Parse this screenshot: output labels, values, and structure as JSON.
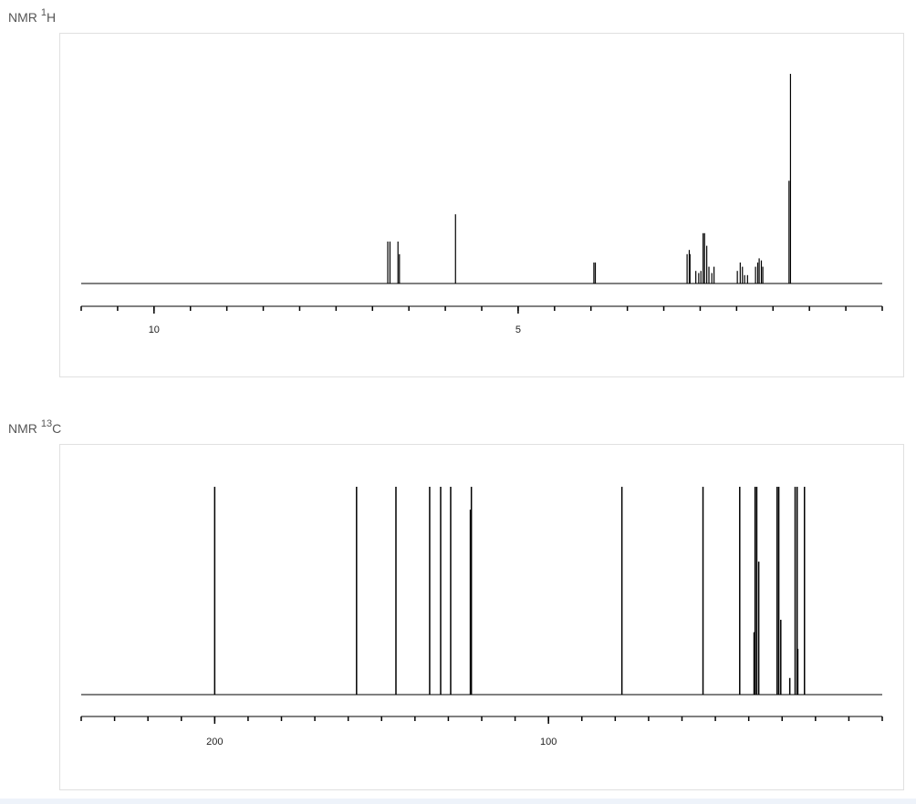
{
  "chart_data": [
    {
      "type": "spectrum",
      "title": {
        "text": "NMR",
        "isotope_mass": "1",
        "element": "H"
      },
      "x": [
        6.79,
        6.76,
        6.65,
        6.63,
        5.86,
        3.96,
        3.94,
        2.68,
        2.65,
        2.64,
        2.56,
        2.52,
        2.49,
        2.46,
        2.44,
        2.41,
        2.38,
        2.34,
        2.31,
        1.99,
        1.95,
        1.92,
        1.89,
        1.85,
        1.74,
        1.71,
        1.69,
        1.66,
        1.64,
        1.28,
        1.26
      ],
      "values": [
        20,
        20,
        20,
        14,
        33,
        10,
        10,
        14,
        16,
        14,
        6,
        5,
        6,
        24,
        24,
        18,
        8,
        5,
        8,
        6,
        10,
        8,
        4,
        4,
        8,
        10,
        12,
        11,
        8,
        49,
        100
      ],
      "color": "#000000",
      "xlim": [
        11,
        0
      ],
      "ylim": [
        0,
        100
      ],
      "xticks": [
        10,
        5
      ],
      "xminor_ticks": [
        11,
        10.5,
        10,
        9.5,
        9,
        8.5,
        8,
        7.5,
        7,
        6.5,
        6,
        5.5,
        5,
        4.5,
        4,
        3.5,
        3,
        2.5,
        2,
        1.5,
        1,
        0.5,
        0
      ]
    },
    {
      "type": "spectrum",
      "title": {
        "text": "NMR",
        "isotope_mass": "13",
        "element": "C"
      },
      "x": [
        200.0,
        157.5,
        145.7,
        135.6,
        132.3,
        129.3,
        123.4,
        123.1,
        78.0,
        53.7,
        42.7,
        38.4,
        38.1,
        37.6,
        37.0,
        31.5,
        31.0,
        30.4,
        27.7,
        26.1,
        25.5,
        25.3,
        23.3
      ],
      "values": [
        100,
        100,
        100,
        100,
        100,
        100,
        89,
        100,
        100,
        100,
        100,
        30,
        100,
        100,
        64,
        100,
        100,
        36,
        8,
        100,
        100,
        22,
        100
      ],
      "color": "#000000",
      "xlim": [
        240,
        0
      ],
      "ylim": [
        0,
        100
      ],
      "xticks": [
        200,
        100
      ],
      "xminor_ticks": [
        240,
        230,
        220,
        210,
        200,
        190,
        180,
        170,
        160,
        150,
        140,
        130,
        120,
        110,
        100,
        90,
        80,
        70,
        60,
        50,
        40,
        30,
        20,
        10,
        0
      ]
    }
  ]
}
